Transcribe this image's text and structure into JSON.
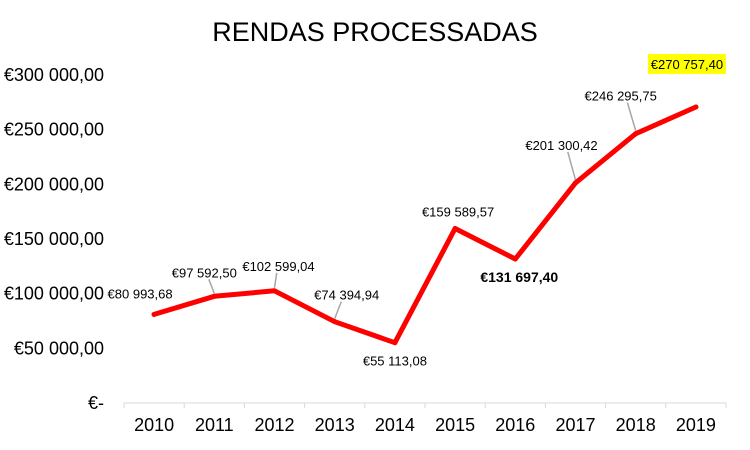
{
  "chart_data": {
    "type": "line",
    "title": "RENDAS  PROCESSADAS",
    "xlabel": "",
    "ylabel": "",
    "categories": [
      "2010",
      "2011",
      "2012",
      "2013",
      "2014",
      "2015",
      "2016",
      "2017",
      "2018",
      "2019"
    ],
    "series": [
      {
        "values": [
          80993.68,
          97592.5,
          102599.04,
          74394.94,
          55113.08,
          159589.57,
          131697.4,
          201300.42,
          246295.75,
          270757.4
        ],
        "color": "#ff0000"
      }
    ],
    "data_labels": [
      "€80 993,68",
      "€97 592,50",
      "€102 599,04",
      "€74 394,94",
      "€55 113,08",
      "€159 589,57",
      "€131 697,40",
      "€201 300,42",
      "€246 295,75",
      "€270 757,40"
    ],
    "highlight_label_color": "#ffff00",
    "ylim": [
      0,
      300000
    ],
    "yticks": [
      0,
      50000,
      100000,
      150000,
      200000,
      250000,
      300000
    ],
    "ytick_labels": [
      "€-",
      "€50 000,00",
      "€100 000,00",
      "€150 000,00",
      "€200 000,00",
      "€250 000,00",
      "€300 000,00"
    ],
    "grid": false,
    "legend": "none"
  }
}
